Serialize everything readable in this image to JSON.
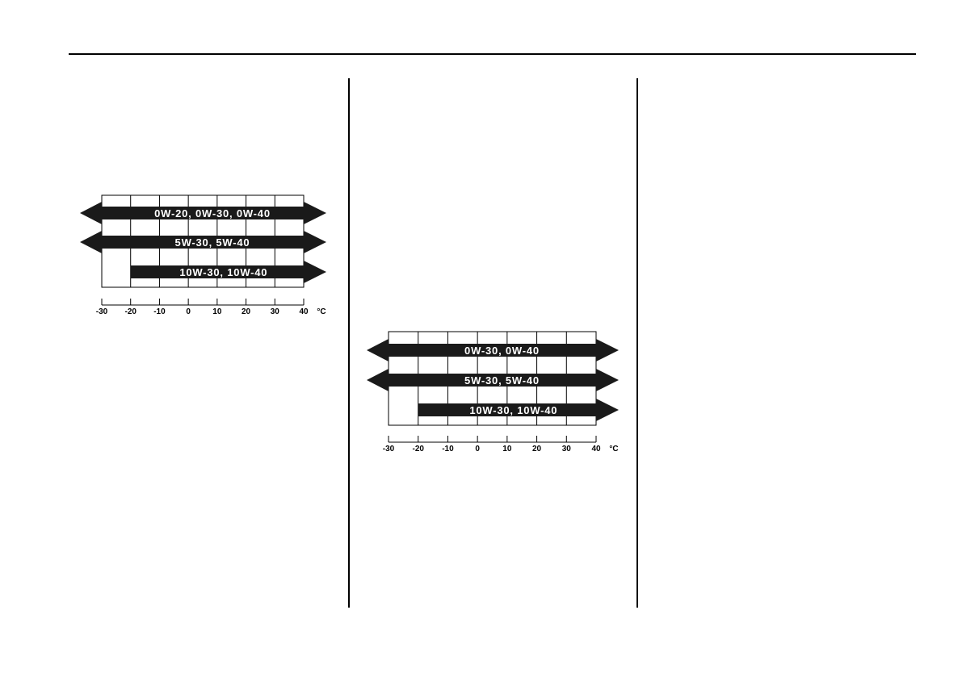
{
  "chart_data": [
    {
      "type": "range-arrows",
      "x_unit": "°C",
      "x_ticks": [
        -30,
        -20,
        -10,
        0,
        10,
        20,
        30,
        40
      ],
      "xlim": [
        -30,
        40
      ],
      "series": [
        {
          "name": "0W-20, 0W-30, 0W-40",
          "from": -30,
          "to": 40,
          "open_left": true,
          "open_right": true
        },
        {
          "name": "5W-30, 5W-40",
          "from": -30,
          "to": 40,
          "open_left": true,
          "open_right": true
        },
        {
          "name": "10W-30, 10W-40",
          "from": -20,
          "to": 40,
          "open_left": false,
          "open_right": true
        }
      ],
      "bar_color": "#1a1a1a"
    },
    {
      "type": "range-arrows",
      "x_unit": "°C",
      "x_ticks": [
        -30,
        -20,
        -10,
        0,
        10,
        20,
        30,
        40
      ],
      "xlim": [
        -30,
        40
      ],
      "series": [
        {
          "name": "0W-30, 0W-40",
          "from": -30,
          "to": 40,
          "open_left": true,
          "open_right": true
        },
        {
          "name": "5W-30, 5W-40",
          "from": -30,
          "to": 40,
          "open_left": true,
          "open_right": true
        },
        {
          "name": "10W-30, 10W-40",
          "from": -20,
          "to": 40,
          "open_left": false,
          "open_right": true
        }
      ],
      "bar_color": "#1a1a1a"
    }
  ]
}
